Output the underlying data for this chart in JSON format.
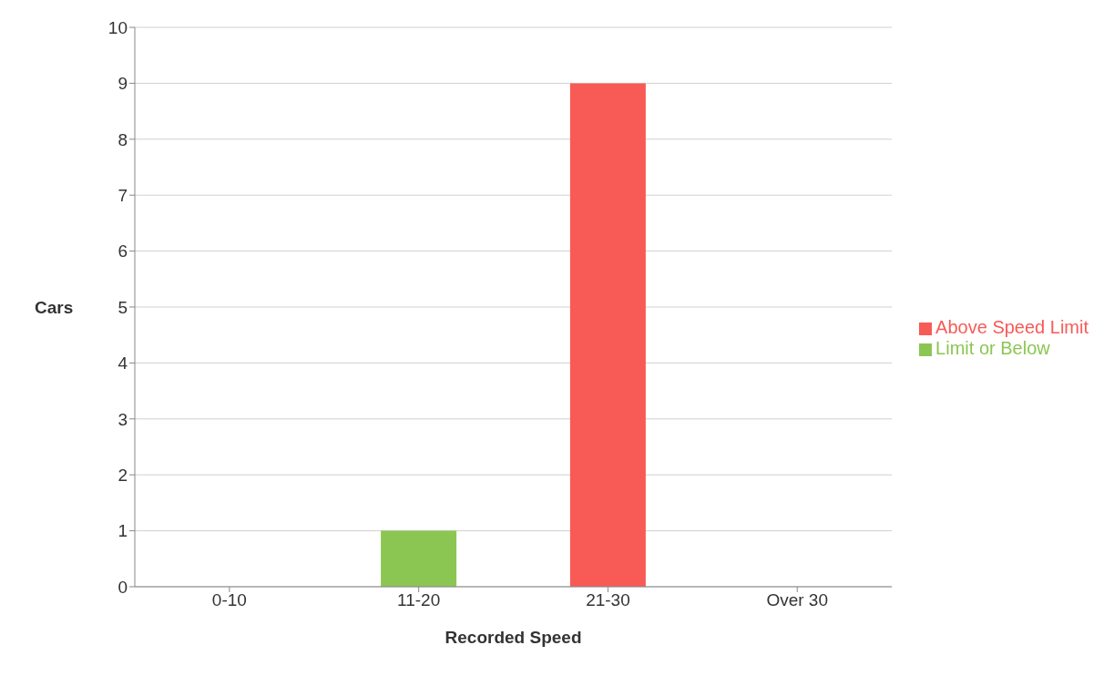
{
  "chart_data": {
    "type": "bar",
    "xlabel": "Recorded Speed",
    "ylabel": "Cars",
    "categories": [
      "0-10",
      "11-20",
      "21-30",
      "Over 30"
    ],
    "series": [
      {
        "name": "Above Speed Limit",
        "color": "#f85a55",
        "values": [
          0,
          0,
          9,
          0
        ]
      },
      {
        "name": "Limit or Below",
        "color": "#8cc652",
        "values": [
          0,
          1,
          0,
          0
        ]
      }
    ],
    "stacked": true,
    "ylim": [
      0,
      10
    ],
    "yticks": [
      0,
      1,
      2,
      3,
      4,
      5,
      6,
      7,
      8,
      9,
      10
    ],
    "grid": "y",
    "legend": "right"
  }
}
